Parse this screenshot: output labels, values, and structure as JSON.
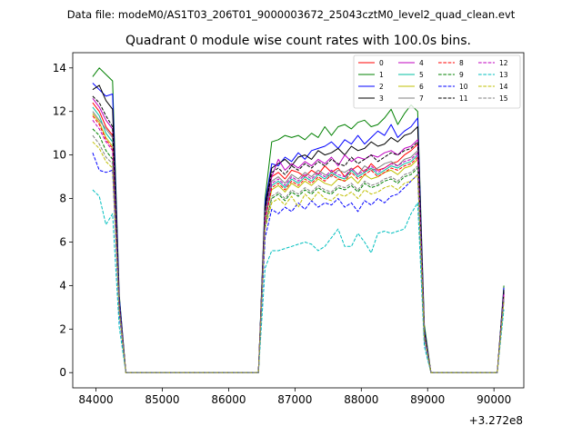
{
  "suptitle": "Data file: modeM0/AS1T03_206T01_9000003672_25043cztM0_level2_quad_clean.evt",
  "chart_data": {
    "type": "line",
    "title": "Quadrant 0 module wise count rates with 100.0s bins.",
    "xlabel": "",
    "ylabel": "",
    "x_offset_label": "+3.272e8",
    "xlim": [
      83650,
      90450
    ],
    "ylim": [
      -0.7,
      14.7
    ],
    "xticks": [
      84000,
      85000,
      86000,
      87000,
      88000,
      89000,
      90000
    ],
    "xtick_labels": [
      "84000",
      "85000",
      "86000",
      "87000",
      "88000",
      "89000",
      "90000"
    ],
    "yticks": [
      0,
      2,
      4,
      6,
      8,
      10,
      12,
      14
    ],
    "ytick_labels": [
      "0",
      "2",
      "4",
      "6",
      "8",
      "10",
      "12",
      "14"
    ],
    "legend_position": "top-right",
    "x": [
      83950,
      84050,
      84150,
      84250,
      84350,
      84450,
      84550,
      84650,
      84750,
      84850,
      84950,
      85050,
      85150,
      85250,
      85350,
      85450,
      85550,
      85650,
      85750,
      85850,
      85950,
      86050,
      86150,
      86250,
      86350,
      86450,
      86550,
      86650,
      86750,
      86850,
      86950,
      87050,
      87150,
      87250,
      87350,
      87450,
      87550,
      87650,
      87750,
      87850,
      87950,
      88050,
      88150,
      88250,
      88350,
      88450,
      88550,
      88650,
      88750,
      88850,
      88950,
      89050,
      89150,
      89250,
      89350,
      89450,
      89550,
      89650,
      89750,
      89850,
      89950,
      90050,
      90150
    ],
    "series": [
      {
        "name": "0",
        "color": "#ff0000",
        "dash": "solid",
        "values": [
          12.4,
          12.0,
          11.3,
          10.9,
          3.2,
          0,
          0,
          0,
          0,
          0,
          0,
          0,
          0,
          0,
          0,
          0,
          0,
          0,
          0,
          0,
          0,
          0,
          0,
          0,
          0,
          0,
          7.5,
          9.0,
          9.2,
          8.9,
          9.3,
          9.2,
          9.0,
          9.3,
          9.1,
          9.5,
          9.2,
          9.4,
          9.0,
          9.3,
          9.5,
          9.2,
          9.6,
          9.3,
          9.4,
          9.6,
          9.7,
          10.0,
          10.2,
          10.5,
          1.8,
          0,
          0,
          0,
          0,
          0,
          0,
          0,
          0,
          0,
          0,
          0,
          3.6
        ]
      },
      {
        "name": "1",
        "color": "#008000",
        "dash": "solid",
        "values": [
          13.6,
          14.0,
          13.7,
          13.4,
          3.6,
          0,
          0,
          0,
          0,
          0,
          0,
          0,
          0,
          0,
          0,
          0,
          0,
          0,
          0,
          0,
          0,
          0,
          0,
          0,
          0,
          0,
          8.0,
          10.6,
          10.7,
          10.9,
          10.8,
          10.9,
          10.7,
          11.0,
          10.8,
          11.3,
          10.9,
          11.3,
          11.4,
          11.2,
          11.5,
          11.6,
          11.3,
          11.4,
          11.7,
          12.1,
          11.4,
          11.9,
          12.3,
          12.0,
          2.2,
          0,
          0,
          0,
          0,
          0,
          0,
          0,
          0,
          0,
          0,
          0,
          4.0
        ]
      },
      {
        "name": "2",
        "color": "#0000ff",
        "dash": "solid",
        "values": [
          13.3,
          13.0,
          12.7,
          12.8,
          3.5,
          0,
          0,
          0,
          0,
          0,
          0,
          0,
          0,
          0,
          0,
          0,
          0,
          0,
          0,
          0,
          0,
          0,
          0,
          0,
          0,
          0,
          7.8,
          9.6,
          9.5,
          9.9,
          9.7,
          10.1,
          9.8,
          10.2,
          10.3,
          10.4,
          10.6,
          10.3,
          10.7,
          10.5,
          10.9,
          10.5,
          10.8,
          11.1,
          10.9,
          11.4,
          10.8,
          11.1,
          11.3,
          11.7,
          2.0,
          0,
          0,
          0,
          0,
          0,
          0,
          0,
          0,
          0,
          0,
          0,
          3.9
        ]
      },
      {
        "name": "3",
        "color": "#000000",
        "dash": "solid",
        "values": [
          13.0,
          13.2,
          12.5,
          12.1,
          3.3,
          0,
          0,
          0,
          0,
          0,
          0,
          0,
          0,
          0,
          0,
          0,
          0,
          0,
          0,
          0,
          0,
          0,
          0,
          0,
          0,
          0,
          7.6,
          9.4,
          9.6,
          9.8,
          9.5,
          9.9,
          10.0,
          9.8,
          10.2,
          10.0,
          10.1,
          10.3,
          10.0,
          10.4,
          10.2,
          10.3,
          10.6,
          10.4,
          10.5,
          10.8,
          10.6,
          10.9,
          11.0,
          11.3,
          1.9,
          0,
          0,
          0,
          0,
          0,
          0,
          0,
          0,
          0,
          0,
          0,
          3.8
        ]
      },
      {
        "name": "4",
        "color": "#bf00bf",
        "dash": "solid",
        "values": [
          12.6,
          12.2,
          11.6,
          11.2,
          3.2,
          0,
          0,
          0,
          0,
          0,
          0,
          0,
          0,
          0,
          0,
          0,
          0,
          0,
          0,
          0,
          0,
          0,
          0,
          0,
          0,
          0,
          7.4,
          9.0,
          9.8,
          9.3,
          9.6,
          9.4,
          9.7,
          9.5,
          9.8,
          9.6,
          9.9,
          9.5,
          10.0,
          9.7,
          9.9,
          9.8,
          10.0,
          9.9,
          10.1,
          10.2,
          10.0,
          10.3,
          10.4,
          10.7,
          1.8,
          0,
          0,
          0,
          0,
          0,
          0,
          0,
          0,
          0,
          0,
          0,
          3.7
        ]
      },
      {
        "name": "5",
        "color": "#00bfa0",
        "dash": "solid",
        "values": [
          12.2,
          11.8,
          11.0,
          10.6,
          3.1,
          0,
          0,
          0,
          0,
          0,
          0,
          0,
          0,
          0,
          0,
          0,
          0,
          0,
          0,
          0,
          0,
          0,
          0,
          0,
          0,
          0,
          7.2,
          8.6,
          8.8,
          8.5,
          8.9,
          8.7,
          9.0,
          8.8,
          9.1,
          8.9,
          9.2,
          9.0,
          8.9,
          9.3,
          9.0,
          9.2,
          9.4,
          9.1,
          9.3,
          9.5,
          9.4,
          9.6,
          9.7,
          10.0,
          1.7,
          0,
          0,
          0,
          0,
          0,
          0,
          0,
          0,
          0,
          0,
          0,
          3.6
        ]
      },
      {
        "name": "6",
        "color": "#bfbf00",
        "dash": "solid",
        "values": [
          11.9,
          11.5,
          10.8,
          10.4,
          3.0,
          0,
          0,
          0,
          0,
          0,
          0,
          0,
          0,
          0,
          0,
          0,
          0,
          0,
          0,
          0,
          0,
          0,
          0,
          0,
          0,
          0,
          7.0,
          8.4,
          8.6,
          8.3,
          8.7,
          8.5,
          8.8,
          8.6,
          8.9,
          8.7,
          8.6,
          8.9,
          8.8,
          9.0,
          8.7,
          9.1,
          8.9,
          9.0,
          9.2,
          9.3,
          9.1,
          9.4,
          9.5,
          9.8,
          1.7,
          0,
          0,
          0,
          0,
          0,
          0,
          0,
          0,
          0,
          0,
          0,
          3.5
        ]
      },
      {
        "name": "7",
        "color": "#808080",
        "dash": "solid",
        "values": [
          12.0,
          11.6,
          11.2,
          10.8,
          3.1,
          0,
          0,
          0,
          0,
          0,
          0,
          0,
          0,
          0,
          0,
          0,
          0,
          0,
          0,
          0,
          0,
          0,
          0,
          0,
          0,
          0,
          7.3,
          8.8,
          9.0,
          8.7,
          9.1,
          8.9,
          9.2,
          9.0,
          9.3,
          9.1,
          9.0,
          9.3,
          9.2,
          9.4,
          9.1,
          9.5,
          9.3,
          9.4,
          9.6,
          9.7,
          9.5,
          9.8,
          9.9,
          10.2,
          1.8,
          0,
          0,
          0,
          0,
          0,
          0,
          0,
          0,
          0,
          0,
          0,
          3.6
        ]
      },
      {
        "name": "8",
        "color": "#ff0000",
        "dash": "dashed",
        "values": [
          11.8,
          11.4,
          10.7,
          10.3,
          3.0,
          0,
          0,
          0,
          0,
          0,
          0,
          0,
          0,
          0,
          0,
          0,
          0,
          0,
          0,
          0,
          0,
          0,
          0,
          0,
          0,
          0,
          7.0,
          8.5,
          8.7,
          8.4,
          8.8,
          8.6,
          8.9,
          8.7,
          9.0,
          8.8,
          9.1,
          8.9,
          8.8,
          9.2,
          8.9,
          9.1,
          9.3,
          9.0,
          9.2,
          9.4,
          9.3,
          9.5,
          9.6,
          9.9,
          1.7,
          0,
          0,
          0,
          0,
          0,
          0,
          0,
          0,
          0,
          0,
          0,
          3.5
        ]
      },
      {
        "name": "9",
        "color": "#008000",
        "dash": "dashed",
        "values": [
          11.2,
          10.9,
          10.2,
          9.8,
          2.9,
          0,
          0,
          0,
          0,
          0,
          0,
          0,
          0,
          0,
          0,
          0,
          0,
          0,
          0,
          0,
          0,
          0,
          0,
          0,
          0,
          0,
          6.8,
          8.0,
          8.2,
          7.9,
          8.3,
          8.1,
          8.4,
          8.2,
          8.5,
          8.3,
          8.2,
          8.5,
          8.4,
          8.6,
          8.3,
          8.7,
          8.5,
          8.6,
          8.8,
          8.9,
          8.7,
          9.0,
          9.1,
          9.4,
          1.6,
          0,
          0,
          0,
          0,
          0,
          0,
          0,
          0,
          0,
          0,
          0,
          3.4
        ]
      },
      {
        "name": "10",
        "color": "#0000ff",
        "dash": "dashed",
        "values": [
          10.1,
          9.3,
          9.2,
          9.3,
          2.7,
          0,
          0,
          0,
          0,
          0,
          0,
          0,
          0,
          0,
          0,
          0,
          0,
          0,
          0,
          0,
          0,
          0,
          0,
          0,
          0,
          0,
          6.2,
          7.5,
          7.3,
          7.6,
          7.4,
          7.8,
          7.5,
          7.9,
          7.6,
          7.8,
          7.7,
          8.0,
          7.6,
          7.8,
          7.4,
          7.9,
          7.7,
          8.0,
          7.8,
          8.1,
          8.2,
          8.5,
          8.8,
          9.1,
          1.5,
          0,
          0,
          0,
          0,
          0,
          0,
          0,
          0,
          0,
          0,
          0,
          3.3
        ]
      },
      {
        "name": "11",
        "color": "#000000",
        "dash": "dashed",
        "values": [
          12.7,
          12.4,
          11.8,
          11.3,
          3.2,
          0,
          0,
          0,
          0,
          0,
          0,
          0,
          0,
          0,
          0,
          0,
          0,
          0,
          0,
          0,
          0,
          0,
          0,
          0,
          0,
          0,
          7.5,
          9.2,
          9.4,
          9.1,
          9.5,
          9.3,
          9.6,
          9.4,
          9.7,
          9.5,
          9.8,
          9.6,
          9.5,
          9.9,
          9.6,
          9.8,
          10.0,
          9.7,
          9.9,
          10.1,
          10.0,
          10.2,
          10.3,
          10.6,
          1.8,
          0,
          0,
          0,
          0,
          0,
          0,
          0,
          0,
          0,
          0,
          0,
          3.7
        ]
      },
      {
        "name": "12",
        "color": "#bf00bf",
        "dash": "dashed",
        "values": [
          11.6,
          11.2,
          10.6,
          10.2,
          3.0,
          0,
          0,
          0,
          0,
          0,
          0,
          0,
          0,
          0,
          0,
          0,
          0,
          0,
          0,
          0,
          0,
          0,
          0,
          0,
          0,
          0,
          7.1,
          8.7,
          8.9,
          8.6,
          9.0,
          8.8,
          9.1,
          8.9,
          9.2,
          9.0,
          9.3,
          9.1,
          9.0,
          9.4,
          9.1,
          9.3,
          9.5,
          9.2,
          9.4,
          9.6,
          9.5,
          9.7,
          9.8,
          10.1,
          1.7,
          0,
          0,
          0,
          0,
          0,
          0,
          0,
          0,
          0,
          0,
          0,
          3.6
        ]
      },
      {
        "name": "13",
        "color": "#00bfbf",
        "dash": "dashed",
        "values": [
          8.4,
          8.1,
          6.8,
          7.3,
          2.1,
          0,
          0,
          0,
          0,
          0,
          0,
          0,
          0,
          0,
          0,
          0,
          0,
          0,
          0,
          0,
          0,
          0,
          0,
          0,
          0,
          0,
          4.8,
          5.6,
          5.6,
          5.7,
          5.8,
          5.9,
          6.0,
          5.9,
          5.6,
          5.8,
          6.2,
          6.6,
          5.8,
          5.8,
          6.4,
          6.0,
          5.5,
          6.4,
          6.5,
          6.4,
          6.5,
          6.6,
          7.3,
          7.8,
          1.2,
          0,
          0,
          0,
          0,
          0,
          0,
          0,
          0,
          0,
          0,
          0,
          2.9
        ]
      },
      {
        "name": "14",
        "color": "#bfbf00",
        "dash": "dashed",
        "values": [
          10.6,
          10.3,
          9.7,
          9.4,
          2.8,
          0,
          0,
          0,
          0,
          0,
          0,
          0,
          0,
          0,
          0,
          0,
          0,
          0,
          0,
          0,
          0,
          0,
          0,
          0,
          0,
          0,
          6.6,
          7.8,
          8.0,
          7.7,
          8.1,
          7.6,
          8.2,
          7.9,
          8.3,
          8.0,
          7.9,
          8.2,
          8.1,
          8.3,
          8.0,
          8.4,
          8.2,
          8.3,
          8.5,
          8.6,
          8.4,
          8.7,
          8.8,
          9.1,
          1.6,
          0,
          0,
          0,
          0,
          0,
          0,
          0,
          0,
          0,
          0,
          0,
          3.3
        ]
      },
      {
        "name": "15",
        "color": "#808080",
        "dash": "dashed",
        "values": [
          10.9,
          10.5,
          9.9,
          9.6,
          2.9,
          0,
          0,
          0,
          0,
          0,
          0,
          0,
          0,
          0,
          0,
          0,
          0,
          0,
          0,
          0,
          0,
          0,
          0,
          0,
          0,
          0,
          6.7,
          8.1,
          8.3,
          8.0,
          8.4,
          8.2,
          8.5,
          8.3,
          8.6,
          8.4,
          8.3,
          8.6,
          8.5,
          8.7,
          8.4,
          8.8,
          8.6,
          8.7,
          8.9,
          9.0,
          8.8,
          9.1,
          9.2,
          9.5,
          1.6,
          0,
          0,
          0,
          0,
          0,
          0,
          0,
          0,
          0,
          0,
          0,
          3.4
        ]
      }
    ]
  }
}
